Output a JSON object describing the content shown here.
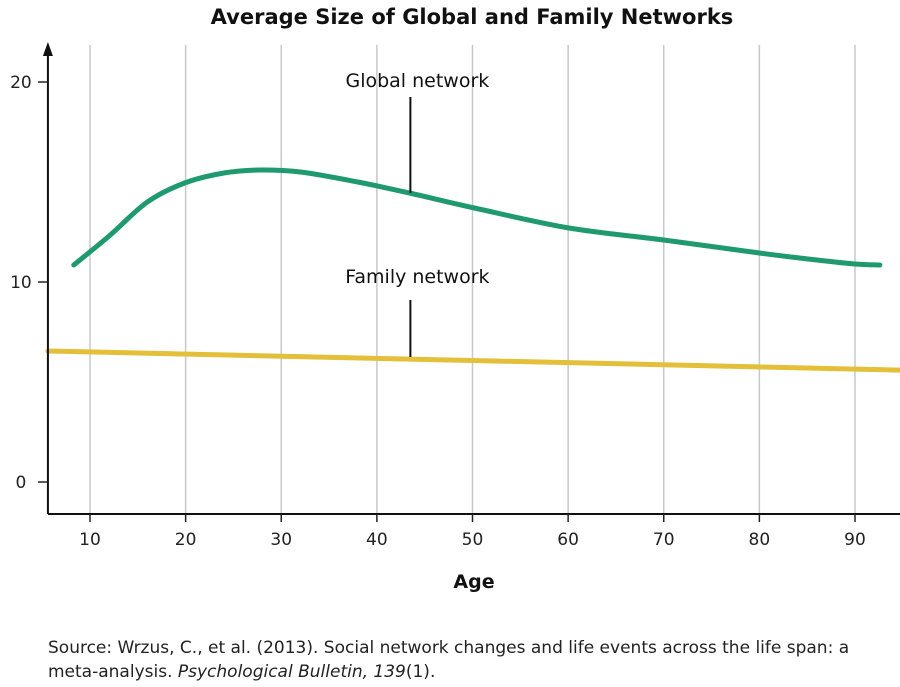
{
  "chart_data": {
    "type": "line",
    "title": "Average Size of Global and Family Networks",
    "xlabel": "Age",
    "ylabel": "",
    "xlim": [
      5.6,
      99
    ],
    "ylim": [
      -1.6,
      21.8
    ],
    "xticks": [
      10,
      20,
      30,
      40,
      50,
      60,
      70,
      80,
      90
    ],
    "yticks": [
      0,
      10,
      20
    ],
    "grid": "vertical",
    "series": [
      {
        "name": "Global network",
        "color": "#1f9a6f",
        "x": [
          8.3,
          12,
          16,
          19.9,
          24,
          27.7,
          32,
          38,
          43.4,
          50.2,
          60.1,
          70,
          80,
          86,
          90,
          92.6
        ],
        "y": [
          10.85,
          12.3,
          14.0,
          14.95,
          15.45,
          15.6,
          15.5,
          15.0,
          14.45,
          13.7,
          12.7,
          12.1,
          11.45,
          11.1,
          10.9,
          10.85
        ]
      },
      {
        "name": "Family network",
        "color": "#e3bf3a",
        "x": [
          5.6,
          99
        ],
        "y": [
          6.55,
          5.55
        ]
      }
    ],
    "annotations": [
      {
        "text": "Global network",
        "x": 43.4
      },
      {
        "text": "Family network",
        "x": 43.4
      }
    ]
  },
  "source": {
    "prefix": "Source: Wrzus, C., et al. (2013). Social network changes and life events across the life span: a meta-analysis. ",
    "journal": "Psychological Bulletin, 139",
    "suffix": "(1)."
  }
}
